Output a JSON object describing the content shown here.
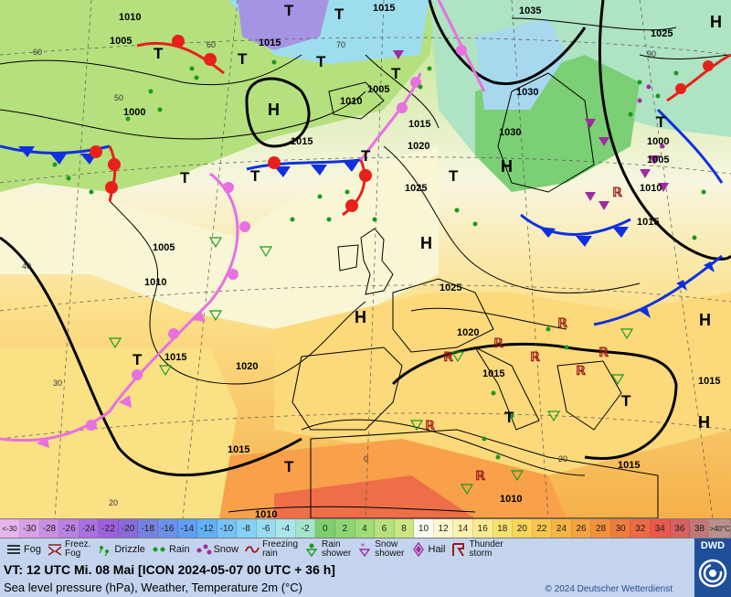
{
  "map": {
    "isobars": [
      "1010",
      "1005",
      "1000",
      "1015",
      "1020",
      "1025",
      "1030",
      "1035"
    ],
    "temp_labels": [
      "60",
      "50",
      "40",
      "30",
      "20",
      "70",
      "0",
      "90"
    ],
    "high_label": "H",
    "low_label": "T"
  },
  "colorbar": {
    "low_end": [
      "<",
      "-30"
    ],
    "steps": [
      {
        "label": "-30",
        "color": "#d8a0e6"
      },
      {
        "label": "-28",
        "color": "#c990e4"
      },
      {
        "label": "-26",
        "color": "#ba80e2"
      },
      {
        "label": "-24",
        "color": "#ab70e0"
      },
      {
        "label": "-22",
        "color": "#9c60dc"
      },
      {
        "label": "-20",
        "color": "#8a6ad8"
      },
      {
        "label": "-18",
        "color": "#7682e2"
      },
      {
        "label": "-16",
        "color": "#6a90e8"
      },
      {
        "label": "-14",
        "color": "#5f9ef0"
      },
      {
        "label": "-12",
        "color": "#62b0f4"
      },
      {
        "label": "-10",
        "color": "#74c2f6"
      },
      {
        "label": "-8",
        "color": "#86d0f6"
      },
      {
        "label": "-6",
        "color": "#98dcf2"
      },
      {
        "label": "-4",
        "color": "#aae6ea"
      },
      {
        "label": "-2",
        "color": "#a4e4c8"
      },
      {
        "label": "0",
        "color": "#7ccf6e"
      },
      {
        "label": "2",
        "color": "#8cd672"
      },
      {
        "label": "4",
        "color": "#a0dc78"
      },
      {
        "label": "6",
        "color": "#b6e27c"
      },
      {
        "label": "8",
        "color": "#cae882"
      },
      {
        "label": "10",
        "color": "#fbfbf2"
      },
      {
        "label": "12",
        "color": "#fcf7cf"
      },
      {
        "label": "14",
        "color": "#fdf1ae"
      },
      {
        "label": "16",
        "color": "#fde98f"
      },
      {
        "label": "18",
        "color": "#fce070"
      },
      {
        "label": "20",
        "color": "#fad65a"
      },
      {
        "label": "22",
        "color": "#f8c64c"
      },
      {
        "label": "24",
        "color": "#f6b444"
      },
      {
        "label": "26",
        "color": "#f4a340"
      },
      {
        "label": "28",
        "color": "#f2903c"
      },
      {
        "label": "30",
        "color": "#f07c3e"
      },
      {
        "label": "32",
        "color": "#ee6a44"
      },
      {
        "label": "34",
        "color": "#e8584c"
      },
      {
        "label": "36",
        "color": "#d76060"
      },
      {
        "label": "38",
        "color": "#c07878"
      }
    ],
    "high_end": [
      ">40",
      "°C"
    ]
  },
  "legend": {
    "fog": "Fog",
    "freezing_fog": [
      "Freez.",
      "Fog"
    ],
    "drizzle": "Drizzle",
    "rain": "Rain",
    "snow": "Snow",
    "freezing_rain": [
      "Freezing",
      "rain"
    ],
    "rain_shower": [
      "Rain",
      "shower"
    ],
    "snow_shower": [
      "Snow",
      "shower"
    ],
    "hail": "Hail",
    "thunderstorm": [
      "Thunder",
      "storm"
    ]
  },
  "info": {
    "valid_time": "VT: 12 UTC Mi.   08 Mai [ICON 2024-05-07  00 UTC + 36 h]",
    "description": "Sea level pressure (hPa), Weather, Temperature 2m (°C)",
    "copyright": "© 2024 Deutscher Wetterdienst",
    "logo_text": "DWD"
  },
  "colors": {
    "warm_front": "#e8201c",
    "cold_front": "#1030e0",
    "occluded_front": "#e870e0",
    "legend_bg": "#c4d4ee",
    "dwd_blue": "#1f4f9a"
  }
}
